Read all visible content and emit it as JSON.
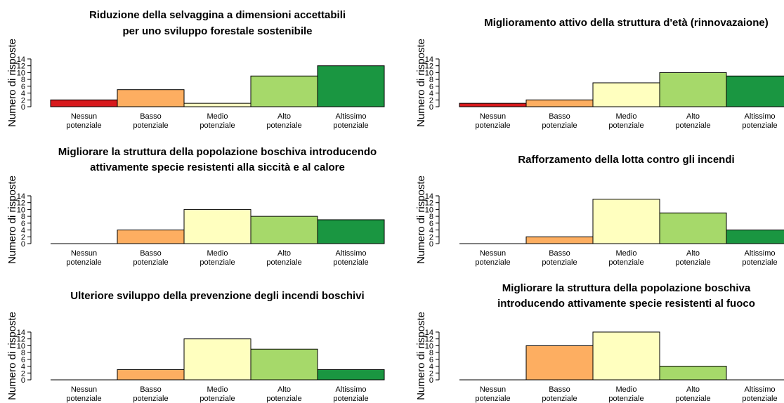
{
  "chart_data": [
    {
      "type": "bar",
      "title_lines": [
        "Riduzione della selvaggina a dimensioni accettabili",
        "per uno sviluppo forestale sostenibile"
      ],
      "ylabel": "Numero di risposte",
      "ylim": [
        0,
        14
      ],
      "yticks": [
        0,
        2,
        4,
        6,
        8,
        10,
        12,
        14
      ],
      "categories": [
        [
          "Nessun",
          "potenziale"
        ],
        [
          "Basso",
          "potenziale"
        ],
        [
          "Medio",
          "potenziale"
        ],
        [
          "Alto",
          "potenziale"
        ],
        [
          "Altissimo",
          "potenziale"
        ]
      ],
      "values": [
        2,
        5,
        1,
        9,
        12
      ]
    },
    {
      "type": "bar",
      "title_lines": [
        "Miglioramento attivo della struttura d'età (rinnovazaione)"
      ],
      "ylabel": "Numero di risposte",
      "ylim": [
        0,
        14
      ],
      "yticks": [
        0,
        2,
        4,
        6,
        8,
        10,
        12,
        14
      ],
      "categories": [
        [
          "Nessun",
          "potenziale"
        ],
        [
          "Basso",
          "potenziale"
        ],
        [
          "Medio",
          "potenziale"
        ],
        [
          "Alto",
          "potenziale"
        ],
        [
          "Altissimo",
          "potenziale"
        ]
      ],
      "values": [
        1,
        2,
        7,
        10,
        9
      ]
    },
    {
      "type": "bar",
      "title_lines": [
        "Migliorare la struttura della popolazione boschiva introducendo",
        "attivamente specie resistenti alla siccità e al calore"
      ],
      "ylabel": "Numero di risposte",
      "ylim": [
        0,
        14
      ],
      "yticks": [
        0,
        2,
        4,
        6,
        8,
        10,
        12,
        14
      ],
      "categories": [
        [
          "Nessun",
          "potenziale"
        ],
        [
          "Basso",
          "potenziale"
        ],
        [
          "Medio",
          "potenziale"
        ],
        [
          "Alto",
          "potenziale"
        ],
        [
          "Altissimo",
          "potenziale"
        ]
      ],
      "values": [
        0,
        4,
        10,
        8,
        7
      ]
    },
    {
      "type": "bar",
      "title_lines": [
        "Rafforzamento della lotta contro gli incendi"
      ],
      "ylabel": "Numero di risposte",
      "ylim": [
        0,
        14
      ],
      "yticks": [
        0,
        2,
        4,
        6,
        8,
        10,
        12,
        14
      ],
      "categories": [
        [
          "Nessun",
          "potenziale"
        ],
        [
          "Basso",
          "potenziale"
        ],
        [
          "Medio",
          "potenziale"
        ],
        [
          "Alto",
          "potenziale"
        ],
        [
          "Altissimo",
          "potenziale"
        ]
      ],
      "values": [
        0,
        2,
        13,
        9,
        4
      ]
    },
    {
      "type": "bar",
      "title_lines": [
        "Ulteriore sviluppo della prevenzione degli incendi boschivi"
      ],
      "ylabel": "Numero di risposte",
      "ylim": [
        0,
        14
      ],
      "yticks": [
        0,
        2,
        4,
        6,
        8,
        10,
        12,
        14
      ],
      "categories": [
        [
          "Nessun",
          "potenziale"
        ],
        [
          "Basso",
          "potenziale"
        ],
        [
          "Medio",
          "potenziale"
        ],
        [
          "Alto",
          "potenziale"
        ],
        [
          "Altissimo",
          "potenziale"
        ]
      ],
      "values": [
        0,
        3,
        12,
        9,
        3
      ]
    },
    {
      "type": "bar",
      "title_lines": [
        "Migliorare la struttura della popolazione boschiva",
        "introducendo attivamente specie resistenti al fuoco"
      ],
      "ylabel": "Numero di risposte",
      "ylim": [
        0,
        14
      ],
      "yticks": [
        0,
        2,
        4,
        6,
        8,
        10,
        12,
        14
      ],
      "categories": [
        [
          "Nessun",
          "potenziale"
        ],
        [
          "Basso",
          "potenziale"
        ],
        [
          "Medio",
          "potenziale"
        ],
        [
          "Alto",
          "potenziale"
        ],
        [
          "Altissimo",
          "potenziale"
        ]
      ],
      "values": [
        0,
        10,
        14,
        4,
        0
      ]
    }
  ],
  "colors": {
    "category_fills": [
      "#d7191c",
      "#fdae61",
      "#ffffbf",
      "#a6d96a",
      "#1a9641"
    ],
    "bar_stroke": "#000000",
    "background": "#ffffff"
  }
}
